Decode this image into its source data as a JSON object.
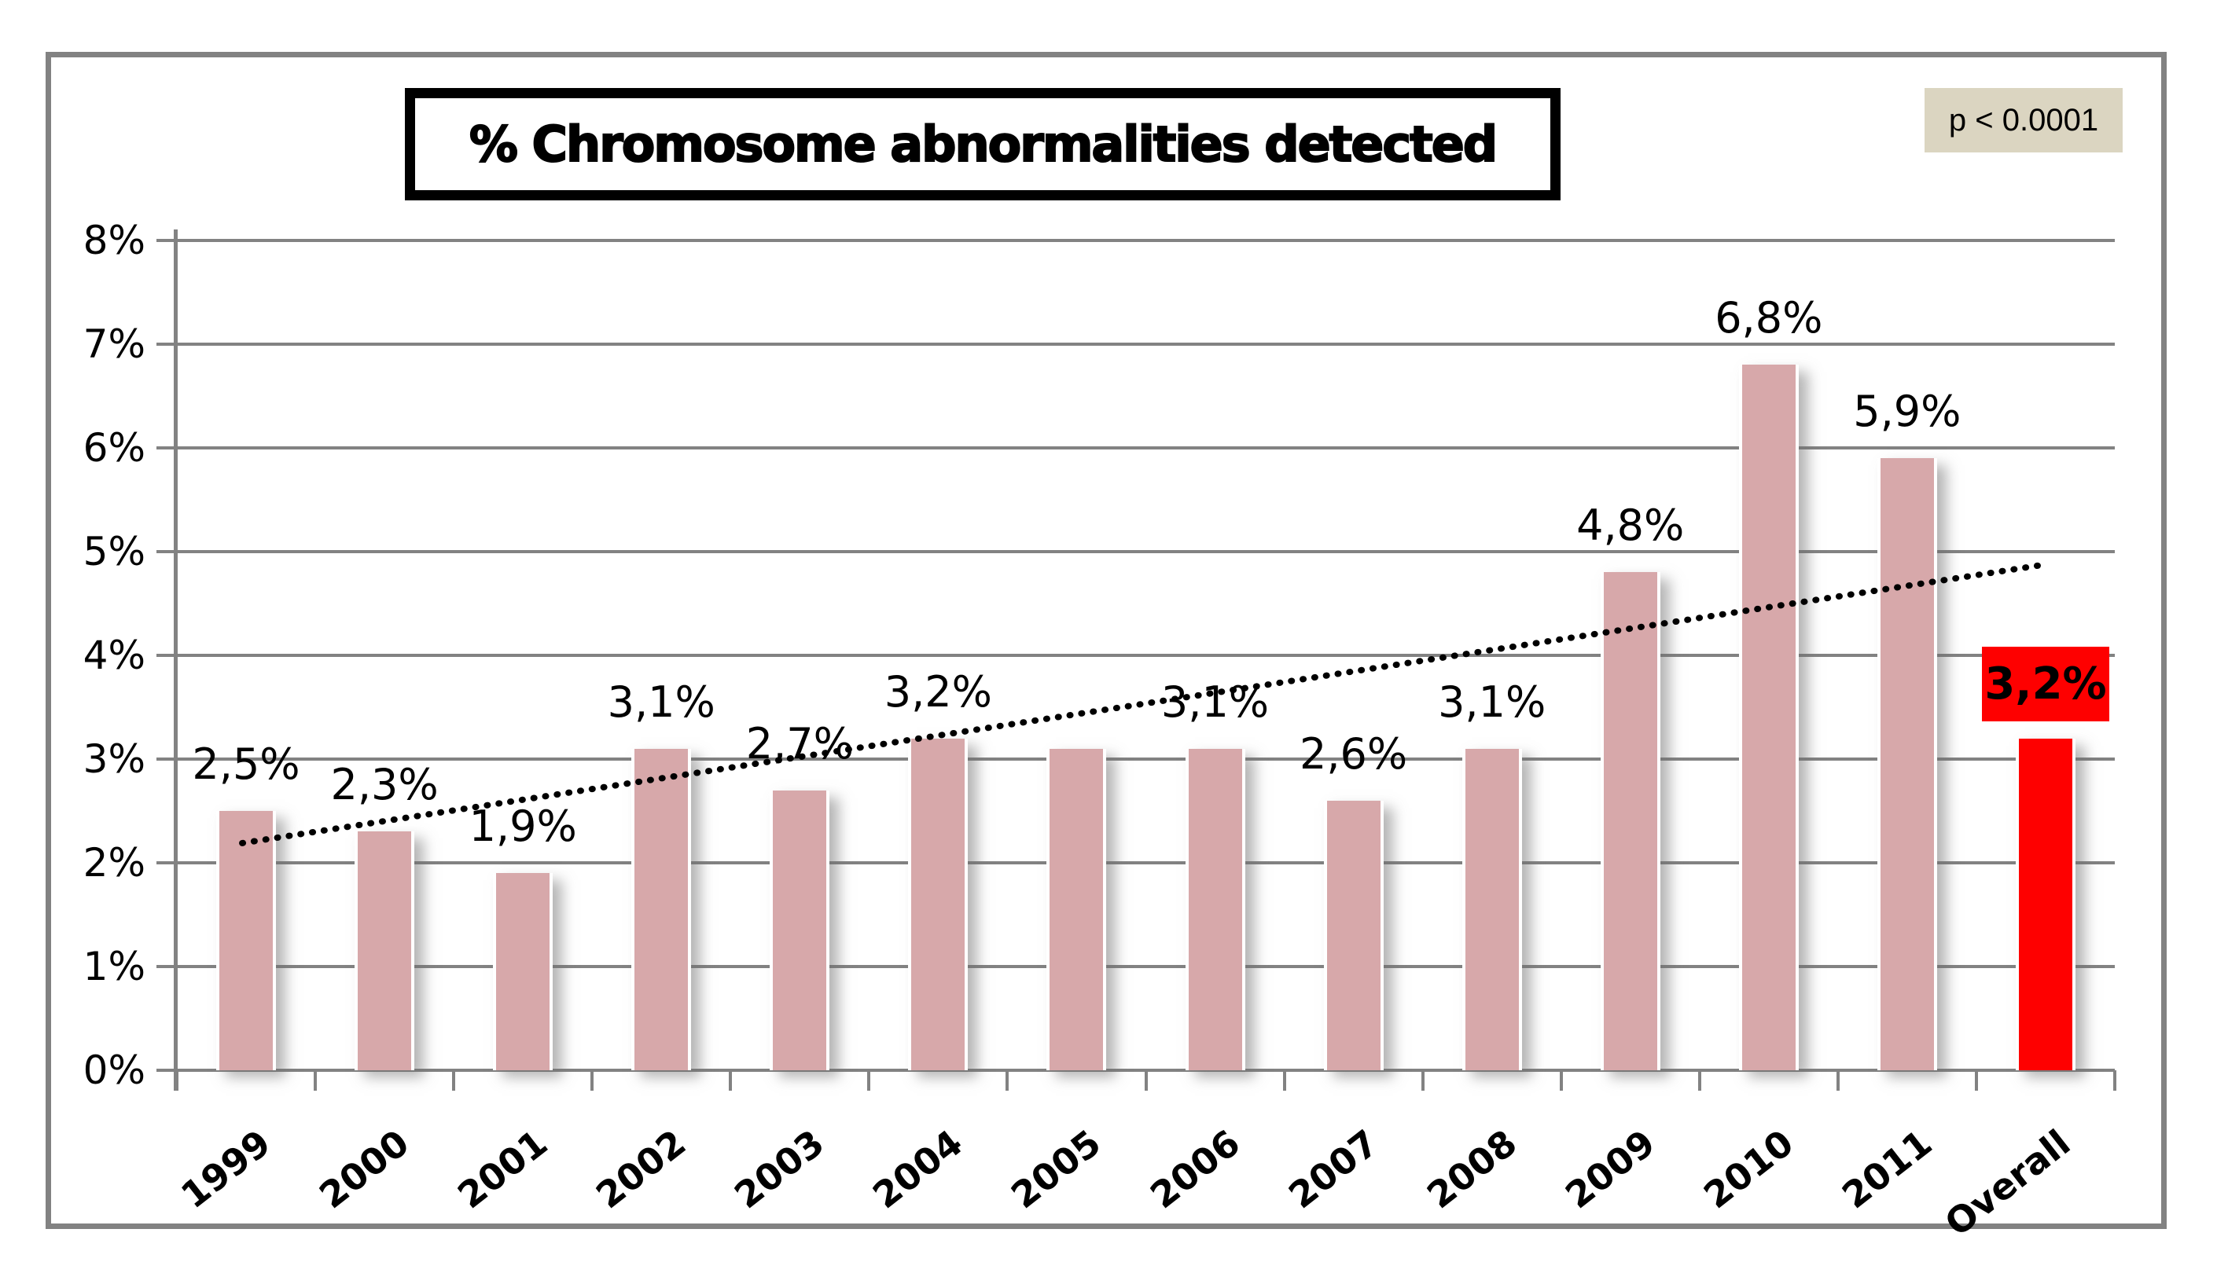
{
  "title": {
    "text": "% Chromosome abnormalities detected"
  },
  "p_value": {
    "text": "p < 0.0001",
    "bg": "#DBD5C1"
  },
  "colors": {
    "bar": "#D7A8AA",
    "overall_bar": "#FE0000",
    "grid": "#828282",
    "frame_border": "#828282",
    "title_border": "#000000",
    "trendline": "#000000",
    "overall_label_bg": "#FE0000",
    "overall_label_text": "#000000"
  },
  "chart_data": {
    "type": "bar",
    "title": "% Chromosome abnormalities detected",
    "annotation": "p < 0.0001",
    "categories": [
      "1999",
      "2000",
      "2001",
      "2002",
      "2003",
      "2004",
      "2005",
      "2006",
      "2007",
      "2008",
      "2009",
      "2010",
      "2011",
      "Overall"
    ],
    "values": [
      2.5,
      2.3,
      1.9,
      3.1,
      2.7,
      3.2,
      3.1,
      3.1,
      2.6,
      3.1,
      4.8,
      6.8,
      5.9,
      3.2
    ],
    "data_labels": [
      "2,5%",
      "2,3%",
      "1,9%",
      "3,1%",
      "2,7%",
      "3,2%",
      "",
      "3,1%",
      "2,6%",
      "3,1%",
      "4,8%",
      "6,8%",
      "5,9%",
      "3,2%"
    ],
    "overall_index": 13,
    "xlabel": "",
    "ylabel": "",
    "ylim": [
      0,
      8
    ],
    "y_ticks": [
      "0%",
      "1%",
      "2%",
      "3%",
      "4%",
      "5%",
      "6%",
      "7%",
      "8%"
    ],
    "grid": true,
    "legend": "none",
    "trendline": {
      "style": "dotted",
      "color": "#000000",
      "x1_frac": 0.0337,
      "v1": 2.19,
      "x2_frac": 0.962,
      "v2": 4.87
    }
  }
}
